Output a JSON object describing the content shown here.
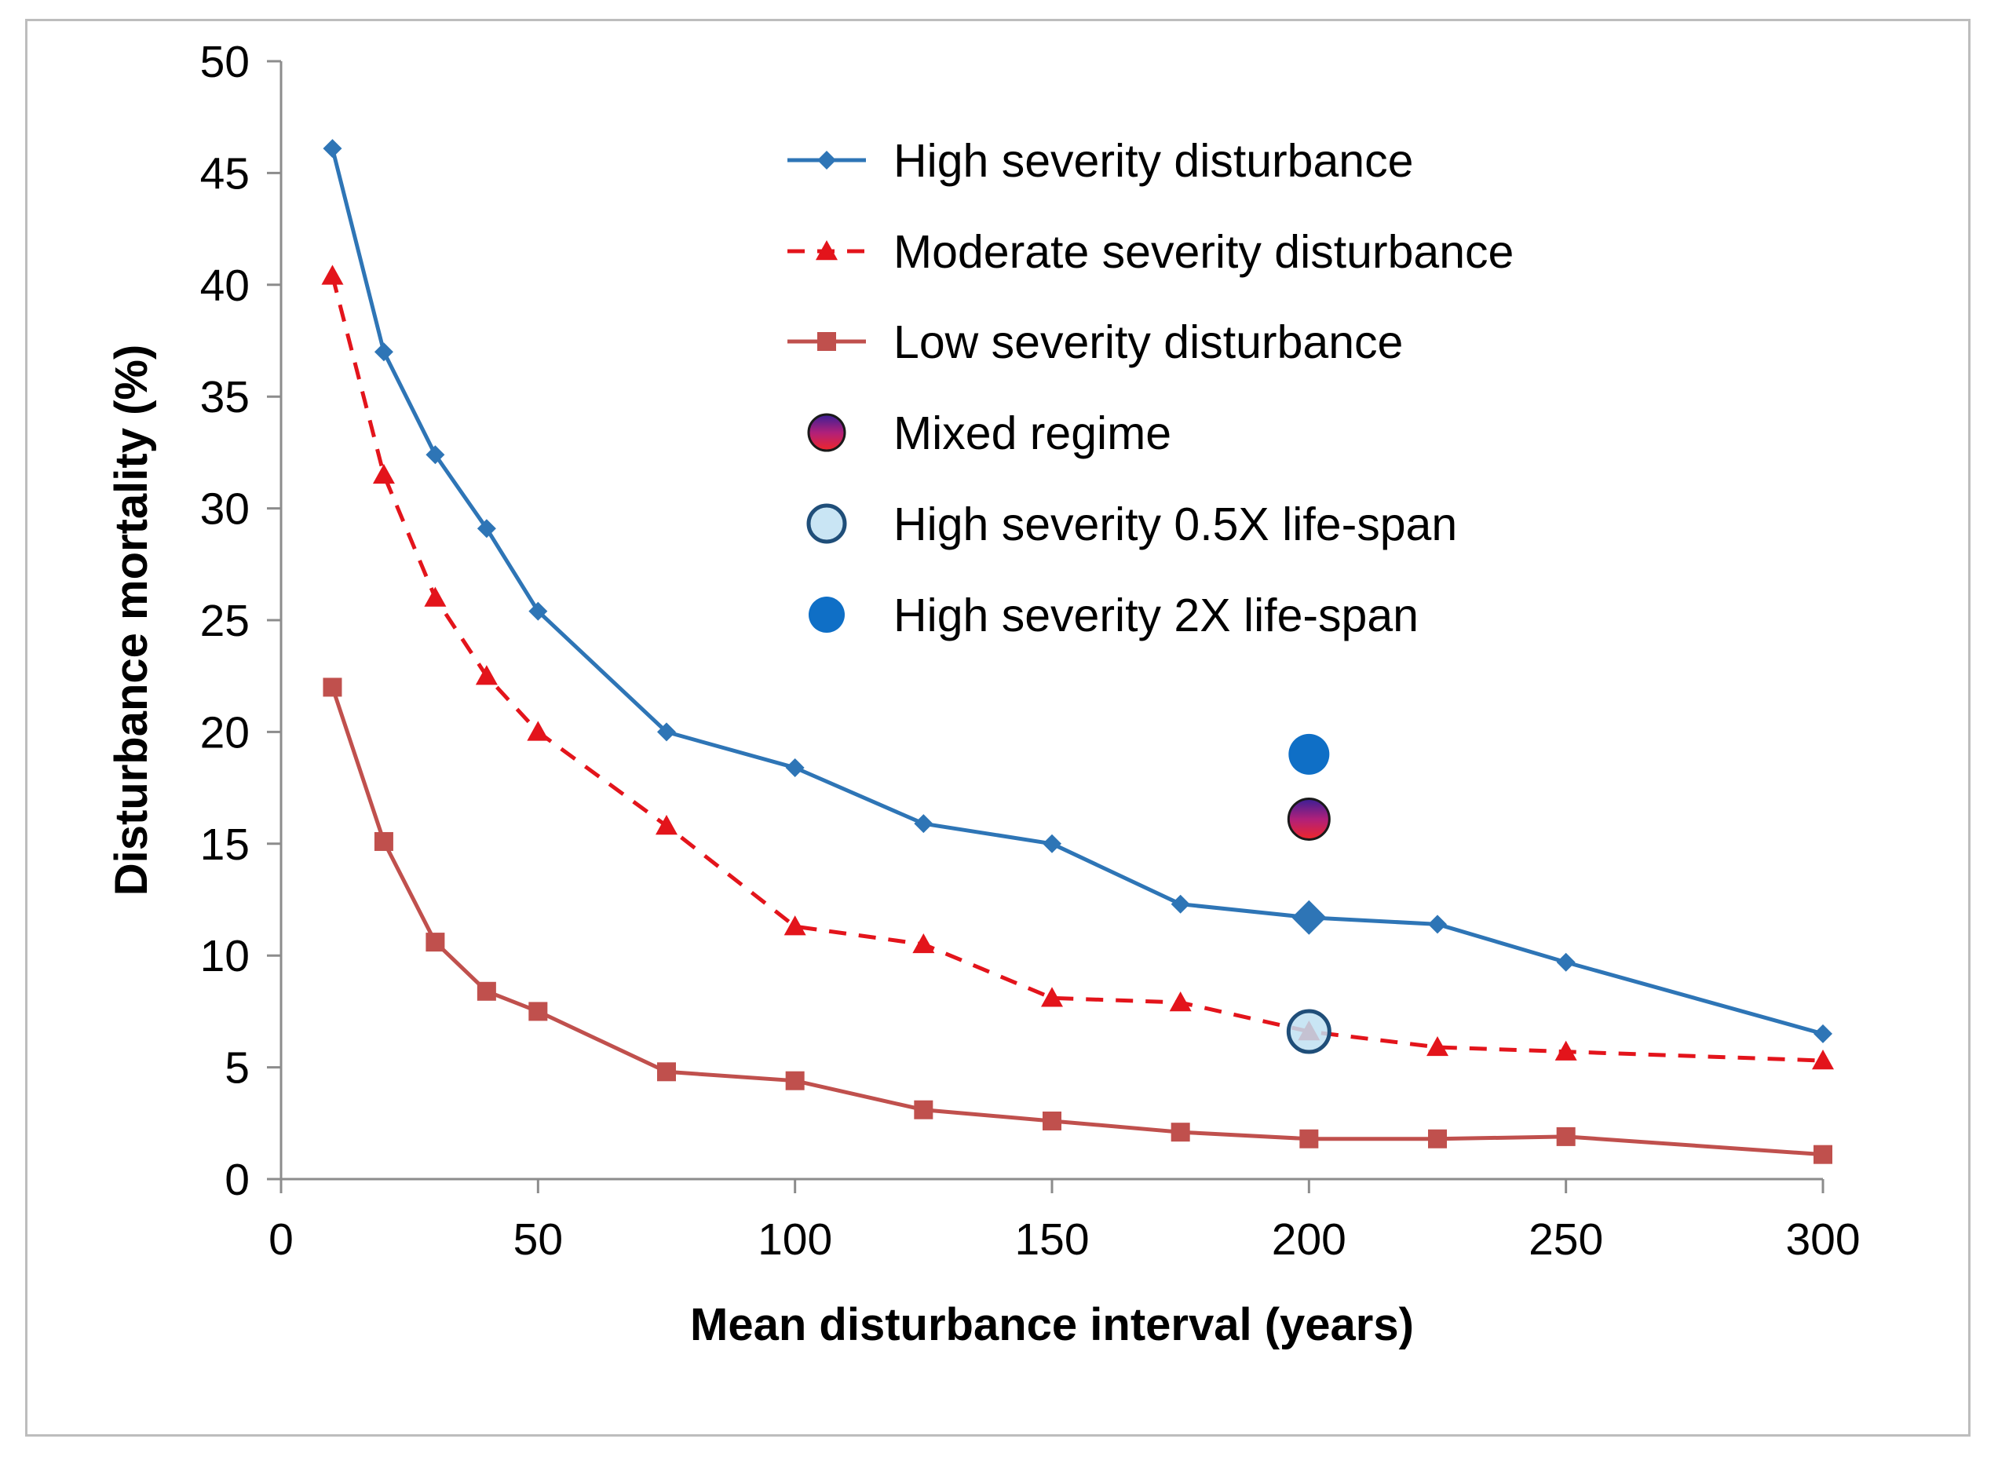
{
  "chart_data": {
    "type": "line",
    "title": "",
    "xlabel": "Mean disturbance interval (years)",
    "ylabel": "Disturbance mortality (%)",
    "xlim": [
      0,
      300
    ],
    "ylim": [
      0,
      50
    ],
    "xticks": [
      0,
      50,
      100,
      150,
      200,
      250,
      300
    ],
    "yticks": [
      0,
      5,
      10,
      15,
      20,
      25,
      30,
      35,
      40,
      45,
      50
    ],
    "grid": false,
    "legend_position": "top-right",
    "x": [
      10,
      20,
      30,
      40,
      50,
      75,
      100,
      125,
      150,
      175,
      200,
      225,
      250,
      300
    ],
    "series": [
      {
        "name": "High severity disturbance",
        "color": "#2E75B6",
        "marker": "diamond",
        "line_style": "solid",
        "values": [
          46.1,
          37.0,
          32.4,
          29.1,
          25.4,
          20.0,
          18.4,
          15.9,
          15.0,
          12.3,
          11.7,
          11.4,
          9.7,
          6.5
        ]
      },
      {
        "name": "Moderate severity disturbance",
        "color": "#E3141B",
        "marker": "triangle",
        "line_style": "dashed",
        "values": [
          40.4,
          31.5,
          26.0,
          22.5,
          20.0,
          15.8,
          11.3,
          10.5,
          8.1,
          7.9,
          6.6,
          5.9,
          5.7,
          5.3
        ]
      },
      {
        "name": "Low severity disturbance",
        "color": "#C0504D",
        "marker": "square",
        "line_style": "solid",
        "values": [
          22.0,
          15.1,
          10.6,
          8.4,
          7.5,
          4.8,
          4.4,
          3.1,
          2.6,
          2.1,
          1.8,
          1.8,
          1.9,
          1.1
        ]
      }
    ],
    "points": [
      {
        "name": "Mixed regime",
        "x": 200,
        "y": 16.1,
        "style": "mixed",
        "color": "#C81E6E"
      },
      {
        "name": "High severity 0.5X life-span",
        "x": 200,
        "y": 6.6,
        "style": "hollow",
        "color": "#BFE0F2"
      },
      {
        "name": "High severity 2X life-span",
        "x": 200,
        "y": 19.0,
        "style": "solid",
        "color": "#0F6FC6"
      }
    ],
    "highlight": {
      "series": "High severity disturbance",
      "x": 200,
      "y": 11.7
    }
  }
}
